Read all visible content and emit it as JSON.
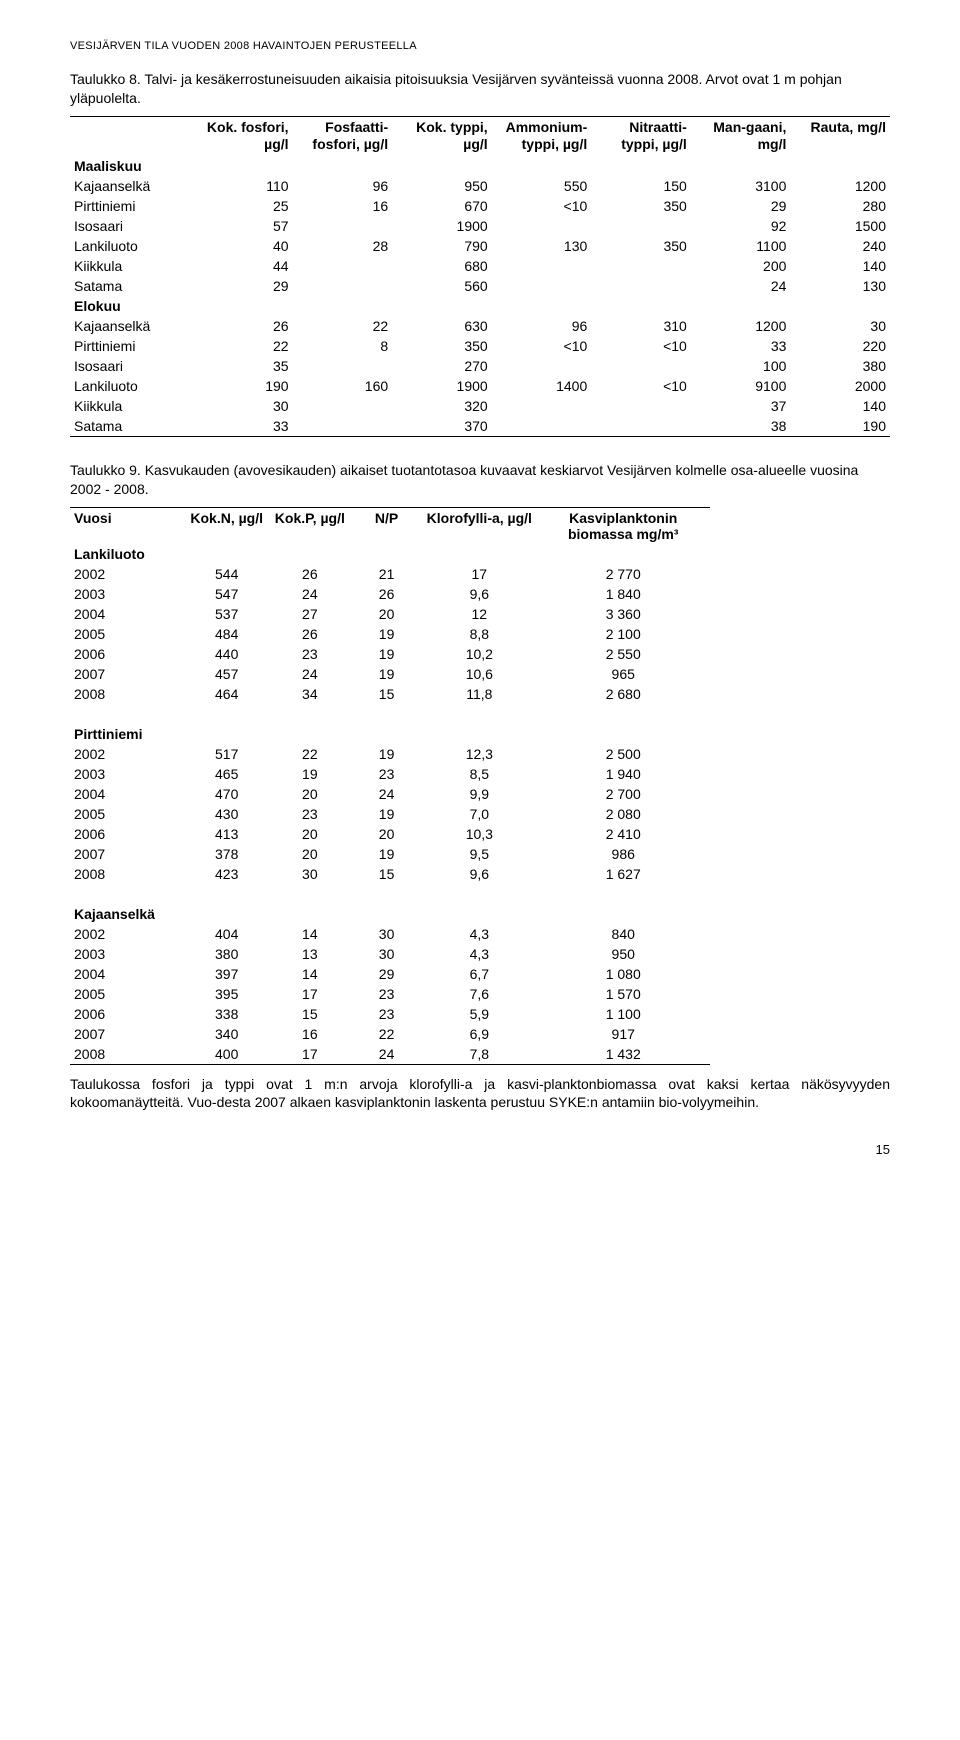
{
  "header": "VESIJÄRVEN TILA VUODEN 2008 HAVAINTOJEN PERUSTEELLA",
  "table8": {
    "caption": "Taulukko 8. Talvi- ja kesäkerrostuneisuuden aikaisia pitoisuuksia Vesijärven syvänteissä vuonna 2008. Arvot ovat 1 m pohjan yläpuolelta.",
    "columns": [
      "",
      "Kok. fosfori, µg/l",
      "Fosfaatti-fosfori, µg/l",
      "Kok. typpi, µg/l",
      "Ammonium-typpi, µg/l",
      "Nitraatti-typpi, µg/l",
      "Man-gaani, mg/l",
      "Rauta, mg/l"
    ],
    "sections": [
      {
        "title": "Maaliskuu",
        "rows": [
          [
            "Kajaanselkä",
            "110",
            "96",
            "950",
            "550",
            "150",
            "3100",
            "1200"
          ],
          [
            "Pirttiniemi",
            "25",
            "16",
            "670",
            "<10",
            "350",
            "29",
            "280"
          ],
          [
            "Isosaari",
            "57",
            "",
            "1900",
            "",
            "",
            "92",
            "1500"
          ],
          [
            "Lankiluoto",
            "40",
            "28",
            "790",
            "130",
            "350",
            "1100",
            "240"
          ],
          [
            "Kiikkula",
            "44",
            "",
            "680",
            "",
            "",
            "200",
            "140"
          ],
          [
            "Satama",
            "29",
            "",
            "560",
            "",
            "",
            "24",
            "130"
          ]
        ]
      },
      {
        "title": "Elokuu",
        "rows": [
          [
            "Kajaanselkä",
            "26",
            "22",
            "630",
            "96",
            "310",
            "1200",
            "30"
          ],
          [
            "Pirttiniemi",
            "22",
            "8",
            "350",
            "<10",
            "<10",
            "33",
            "220"
          ],
          [
            "Isosaari",
            "35",
            "",
            "270",
            "",
            "",
            "100",
            "380"
          ],
          [
            "Lankiluoto",
            "190",
            "160",
            "1900",
            "1400",
            "<10",
            "9100",
            "2000"
          ],
          [
            "Kiikkula",
            "30",
            "",
            "320",
            "",
            "",
            "37",
            "140"
          ],
          [
            "Satama",
            "33",
            "",
            "370",
            "",
            "",
            "38",
            "190"
          ]
        ]
      }
    ]
  },
  "table9": {
    "caption": "Taulukko 9. Kasvukauden (avovesikauden) aikaiset tuotantotasoa kuvaavat keskiarvot Vesijärven kolmelle osa-alueelle vuosina 2002 - 2008.",
    "columns": [
      "Vuosi",
      "Kok.N, µg/l",
      "Kok.P, µg/l",
      "N/P",
      "Klorofylli-a, µg/l",
      "Kasviplanktonin biomassa mg/m³"
    ],
    "sections": [
      {
        "title": "Lankiluoto",
        "rows": [
          [
            "2002",
            "544",
            "26",
            "21",
            "17",
            "2 770"
          ],
          [
            "2003",
            "547",
            "24",
            "26",
            "9,6",
            "1 840"
          ],
          [
            "2004",
            "537",
            "27",
            "20",
            "12",
            "3 360"
          ],
          [
            "2005",
            "484",
            "26",
            "19",
            "8,8",
            "2 100"
          ],
          [
            "2006",
            "440",
            "23",
            "19",
            "10,2",
            "2 550"
          ],
          [
            "2007",
            "457",
            "24",
            "19",
            "10,6",
            "965"
          ],
          [
            "2008",
            "464",
            "34",
            "15",
            "11,8",
            "2 680"
          ]
        ]
      },
      {
        "title": "Pirttiniemi",
        "rows": [
          [
            "2002",
            "517",
            "22",
            "19",
            "12,3",
            "2 500"
          ],
          [
            "2003",
            "465",
            "19",
            "23",
            "8,5",
            "1 940"
          ],
          [
            "2004",
            "470",
            "20",
            "24",
            "9,9",
            "2 700"
          ],
          [
            "2005",
            "430",
            "23",
            "19",
            "7,0",
            "2 080"
          ],
          [
            "2006",
            "413",
            "20",
            "20",
            "10,3",
            "2 410"
          ],
          [
            "2007",
            "378",
            "20",
            "19",
            "9,5",
            "986"
          ],
          [
            "2008",
            "423",
            "30",
            "15",
            "9,6",
            "1 627"
          ]
        ]
      },
      {
        "title": "Kajaanselkä",
        "rows": [
          [
            "2002",
            "404",
            "14",
            "30",
            "4,3",
            "840"
          ],
          [
            "2003",
            "380",
            "13",
            "30",
            "4,3",
            "950"
          ],
          [
            "2004",
            "397",
            "14",
            "29",
            "6,7",
            "1 080"
          ],
          [
            "2005",
            "395",
            "17",
            "23",
            "7,6",
            "1 570"
          ],
          [
            "2006",
            "338",
            "15",
            "23",
            "5,9",
            "1 100"
          ],
          [
            "2007",
            "340",
            "16",
            "22",
            "6,9",
            "917"
          ],
          [
            "2008",
            "400",
            "17",
            "24",
            "7,8",
            "1 432"
          ]
        ]
      }
    ]
  },
  "note": "Taulukossa fosfori ja typpi ovat 1 m:n arvoja klorofylli-a ja kasvi-planktonbiomassa ovat kaksi kertaa näkösyvyyden kokoomanäytteitä. Vuo-desta 2007 alkaen kasviplanktonin laskenta perustuu SYKE:n antamiin bio-volyymeihin.",
  "pagenum": "15",
  "style": {
    "background_color": "#ffffff",
    "text_color": "#000000",
    "rule_color": "#000000",
    "body_fontsize_pt": 10.5,
    "header_fontsize_pt": 8.5,
    "font_family": "Verdana, Arial, sans-serif"
  }
}
